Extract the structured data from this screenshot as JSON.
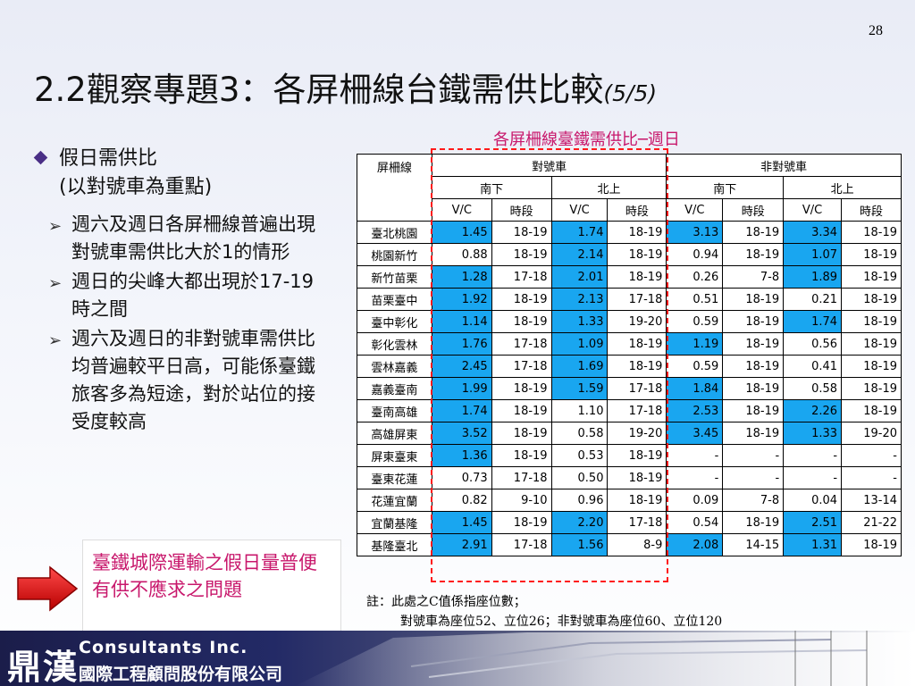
{
  "slide": {
    "page_number": "28",
    "title_main": "2.2觀察專題3：各屏柵線台鐵需供比較",
    "title_suffix": "(5/5)"
  },
  "bullets": {
    "main_line1": "假日需供比",
    "main_line2": "(以對號車為重點)",
    "sub_items": [
      "週六及週日各屏柵線普遍出現對號車需供比大於1的情形",
      "週日的尖峰大都出現於17-19時之間",
      "週六及週日的非對號車需供比均普遍較平日高，可能係臺鐵旅客多為短途，對於站位的接受度較高"
    ]
  },
  "callout": {
    "text": "臺鐵城際運輸之假日量普便有供不應求之問題"
  },
  "table": {
    "caption": "各屏柵線臺鐵需供比─週日",
    "header_screenline": "屏柵線",
    "header_reserved": "對號車",
    "header_nonreserved": "非對號車",
    "dir_south": "南下",
    "dir_north": "北上",
    "col_vc": "V/C",
    "col_period": "時段",
    "highlight_color": "#19a6f0",
    "rows": [
      {
        "name": "臺北桃園",
        "r_s_vc": "1.45",
        "r_s_t": "18-19",
        "r_n_vc": "1.74",
        "r_n_t": "18-19",
        "n_s_vc": "3.13",
        "n_s_t": "18-19",
        "n_n_vc": "3.34",
        "n_n_t": "18-19",
        "hl": [
          true,
          true,
          true,
          true
        ]
      },
      {
        "name": "桃園新竹",
        "r_s_vc": "0.88",
        "r_s_t": "18-19",
        "r_n_vc": "2.14",
        "r_n_t": "18-19",
        "n_s_vc": "0.94",
        "n_s_t": "18-19",
        "n_n_vc": "1.07",
        "n_n_t": "18-19",
        "hl": [
          false,
          true,
          false,
          true
        ]
      },
      {
        "name": "新竹苗栗",
        "r_s_vc": "1.28",
        "r_s_t": "17-18",
        "r_n_vc": "2.01",
        "r_n_t": "18-19",
        "n_s_vc": "0.26",
        "n_s_t": "7-8",
        "n_n_vc": "1.89",
        "n_n_t": "18-19",
        "hl": [
          true,
          true,
          false,
          true
        ]
      },
      {
        "name": "苗栗臺中",
        "r_s_vc": "1.92",
        "r_s_t": "18-19",
        "r_n_vc": "2.13",
        "r_n_t": "17-18",
        "n_s_vc": "0.51",
        "n_s_t": "18-19",
        "n_n_vc": "0.21",
        "n_n_t": "18-19",
        "hl": [
          true,
          true,
          false,
          false
        ]
      },
      {
        "name": "臺中彰化",
        "r_s_vc": "1.14",
        "r_s_t": "18-19",
        "r_n_vc": "1.33",
        "r_n_t": "19-20",
        "n_s_vc": "0.59",
        "n_s_t": "18-19",
        "n_n_vc": "1.74",
        "n_n_t": "18-19",
        "hl": [
          true,
          true,
          false,
          true
        ]
      },
      {
        "name": "彰化雲林",
        "r_s_vc": "1.76",
        "r_s_t": "17-18",
        "r_n_vc": "1.09",
        "r_n_t": "18-19",
        "n_s_vc": "1.19",
        "n_s_t": "18-19",
        "n_n_vc": "0.56",
        "n_n_t": "18-19",
        "hl": [
          true,
          true,
          true,
          false
        ]
      },
      {
        "name": "雲林嘉義",
        "r_s_vc": "2.45",
        "r_s_t": "17-18",
        "r_n_vc": "1.69",
        "r_n_t": "18-19",
        "n_s_vc": "0.59",
        "n_s_t": "18-19",
        "n_n_vc": "0.41",
        "n_n_t": "18-19",
        "hl": [
          true,
          true,
          false,
          false
        ]
      },
      {
        "name": "嘉義臺南",
        "r_s_vc": "1.99",
        "r_s_t": "18-19",
        "r_n_vc": "1.59",
        "r_n_t": "17-18",
        "n_s_vc": "1.84",
        "n_s_t": "18-19",
        "n_n_vc": "0.58",
        "n_n_t": "18-19",
        "hl": [
          true,
          true,
          true,
          false
        ]
      },
      {
        "name": "臺南高雄",
        "r_s_vc": "1.74",
        "r_s_t": "18-19",
        "r_n_vc": "1.10",
        "r_n_t": "17-18",
        "n_s_vc": "2.53",
        "n_s_t": "18-19",
        "n_n_vc": "2.26",
        "n_n_t": "18-19",
        "hl": [
          true,
          false,
          true,
          true
        ]
      },
      {
        "name": "高雄屏東",
        "r_s_vc": "3.52",
        "r_s_t": "18-19",
        "r_n_vc": "0.58",
        "r_n_t": "19-20",
        "n_s_vc": "3.45",
        "n_s_t": "18-19",
        "n_n_vc": "1.33",
        "n_n_t": "19-20",
        "hl": [
          true,
          false,
          true,
          true
        ]
      },
      {
        "name": "屏東臺東",
        "r_s_vc": "1.36",
        "r_s_t": "18-19",
        "r_n_vc": "0.53",
        "r_n_t": "18-19",
        "n_s_vc": "-",
        "n_s_t": "-",
        "n_n_vc": "-",
        "n_n_t": "-",
        "hl": [
          true,
          false,
          false,
          false
        ]
      },
      {
        "name": "臺東花蓮",
        "r_s_vc": "0.73",
        "r_s_t": "17-18",
        "r_n_vc": "0.50",
        "r_n_t": "18-19",
        "n_s_vc": "-",
        "n_s_t": "-",
        "n_n_vc": "-",
        "n_n_t": "-",
        "hl": [
          false,
          false,
          false,
          false
        ]
      },
      {
        "name": "花蓮宜蘭",
        "r_s_vc": "0.82",
        "r_s_t": "9-10",
        "r_n_vc": "0.96",
        "r_n_t": "18-19",
        "n_s_vc": "0.09",
        "n_s_t": "7-8",
        "n_n_vc": "0.04",
        "n_n_t": "13-14",
        "hl": [
          false,
          false,
          false,
          false
        ]
      },
      {
        "name": "宜蘭基隆",
        "r_s_vc": "1.45",
        "r_s_t": "18-19",
        "r_n_vc": "2.20",
        "r_n_t": "17-18",
        "n_s_vc": "0.54",
        "n_s_t": "18-19",
        "n_n_vc": "2.51",
        "n_n_t": "21-22",
        "hl": [
          true,
          true,
          false,
          true
        ]
      },
      {
        "name": "基隆臺北",
        "r_s_vc": "2.91",
        "r_s_t": "17-18",
        "r_n_vc": "1.56",
        "r_n_t": "8-9",
        "n_s_vc": "2.08",
        "n_s_t": "14-15",
        "n_n_vc": "1.31",
        "n_n_t": "18-19",
        "hl": [
          true,
          true,
          true,
          true
        ]
      }
    ],
    "note_line1": "註：此處之C值係指座位數；",
    "note_line2": "對號車為座位52、立位26；非對號車為座位60、立位120"
  },
  "footer": {
    "logo_cn": "鼎漢",
    "company_en": "Consultants Inc.",
    "company_cn": "國際工程顧問股份有限公司"
  }
}
